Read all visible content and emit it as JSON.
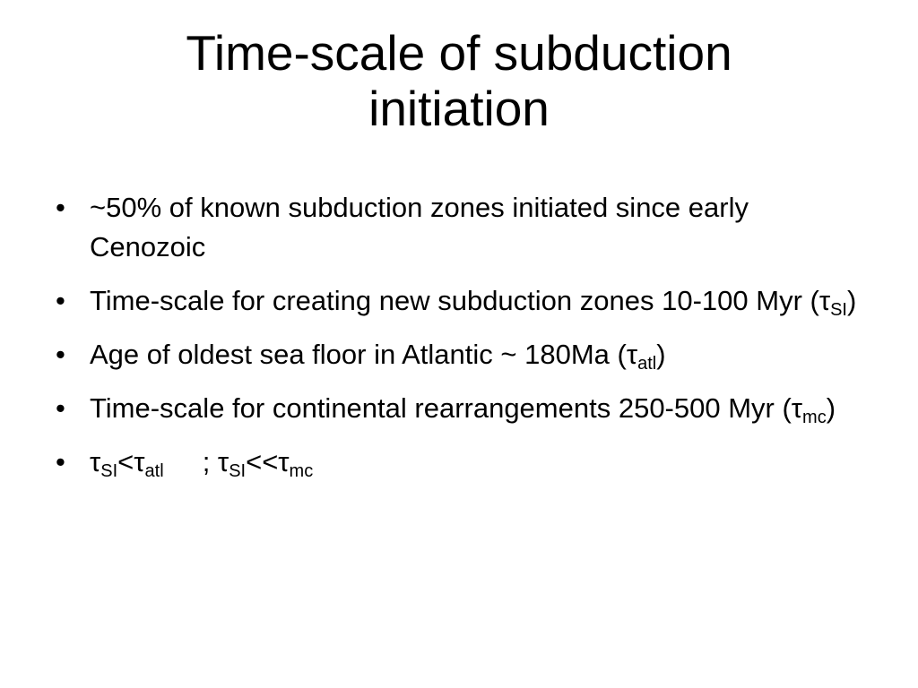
{
  "title": "Time-scale of subduction initiation",
  "bullets": [
    [
      "~50% of known subduction zones initiated since early Cenozoic"
    ],
    [
      "Time-scale for creating new subduction zones 10-100 Myr (τ",
      {
        "sub": "SI"
      },
      ")"
    ],
    [
      "Age of oldest sea floor in Atlantic ~ 180Ma (τ",
      {
        "sub": "atl"
      },
      ")"
    ],
    [
      "Time-scale for continental rearrangements 250-500 Myr (τ",
      {
        "sub": "mc"
      },
      ")"
    ],
    [
      "τ",
      {
        "sub": "SI"
      },
      "<τ",
      {
        "sub": "atl"
      },
      "     ; τ",
      {
        "sub": "SI"
      },
      "<<τ",
      {
        "sub": "mc"
      }
    ]
  ]
}
